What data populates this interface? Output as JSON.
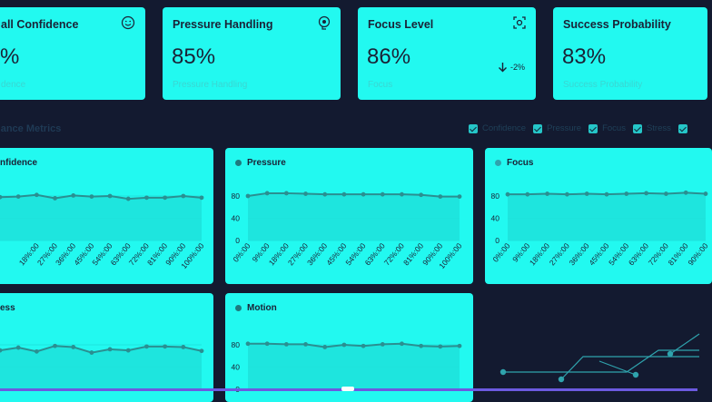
{
  "kpis": [
    {
      "title": "all Confidence",
      "value": "%",
      "sub": "dence",
      "icon": "smiley-icon"
    },
    {
      "title": "Pressure Handling",
      "value": "85%",
      "sub": "Pressure Handling",
      "icon": "brain-icon"
    },
    {
      "title": "Focus Level",
      "value": "86%",
      "sub": "Focus",
      "icon": "focus-target-icon",
      "delta": "-2%",
      "delta_icon": "arrow-down-icon"
    },
    {
      "title": "Success Probability",
      "value": "83%",
      "sub": "Success Probability"
    }
  ],
  "section": {
    "title": "nance Metrics"
  },
  "legend": [
    "Confidence",
    "Pressure",
    "Focus",
    "Stress"
  ],
  "colors": {
    "background": "#131a30",
    "card": "#22f9f0",
    "line": "#2a8f91",
    "area": "#1ee2dc",
    "deco": "#2fa3ad"
  },
  "chart_data": [
    {
      "type": "area",
      "title": "nfidence",
      "x": [
        "",
        "",
        "18%:00",
        "27%:00",
        "36%:00",
        "45%:00",
        "54%:00",
        "63%:00",
        "72%:00",
        "81%:00",
        "90%:00",
        "100%:00"
      ],
      "yticks": [
        "",
        "",
        ""
      ],
      "values": [
        78,
        79,
        82,
        76,
        81,
        79,
        80,
        75,
        77,
        77,
        80,
        77
      ],
      "ylim": [
        0,
        100
      ]
    },
    {
      "type": "area",
      "title": "Pressure",
      "x": [
        "0%:00",
        "9%:00",
        "18%:00",
        "27%:00",
        "36%:00",
        "45%:00",
        "54%:00",
        "63%:00",
        "72%:00",
        "81%:00",
        "90%:00",
        "100%:00"
      ],
      "yticks": [
        "80",
        "40",
        "0"
      ],
      "values": [
        80,
        85,
        85,
        84,
        83,
        83,
        83,
        83,
        83,
        82,
        79,
        79
      ],
      "ylim": [
        0,
        100
      ],
      "dot": "#1e7a7e"
    },
    {
      "type": "area",
      "title": "Focus",
      "x": [
        "0%:00",
        "9%:00",
        "18%:00",
        "27%:00",
        "36%:00",
        "45%:00",
        "54%:00",
        "63%:00",
        "72%:00",
        "81%:00",
        "90%:00"
      ],
      "yticks": [
        "80",
        "40",
        "0"
      ],
      "values": [
        83,
        83,
        84,
        83,
        84,
        83,
        84,
        85,
        84,
        86,
        84
      ],
      "ylim": [
        0,
        100
      ],
      "dot": "#2fa3ad"
    },
    {
      "type": "area",
      "title": "ess",
      "yticks": [
        "",
        "",
        ""
      ],
      "values": [
        70,
        75,
        68,
        78,
        76,
        66,
        72,
        70,
        77,
        77,
        76,
        69
      ],
      "ylim": [
        0,
        100
      ]
    },
    {
      "type": "area",
      "title": "Motion",
      "yticks": [
        "80",
        "40",
        "0"
      ],
      "values": [
        82,
        82,
        81,
        81,
        76,
        80,
        78,
        81,
        82,
        78,
        77,
        78
      ],
      "ylim": [
        0,
        100
      ],
      "dot": "#1e7a7e"
    }
  ]
}
